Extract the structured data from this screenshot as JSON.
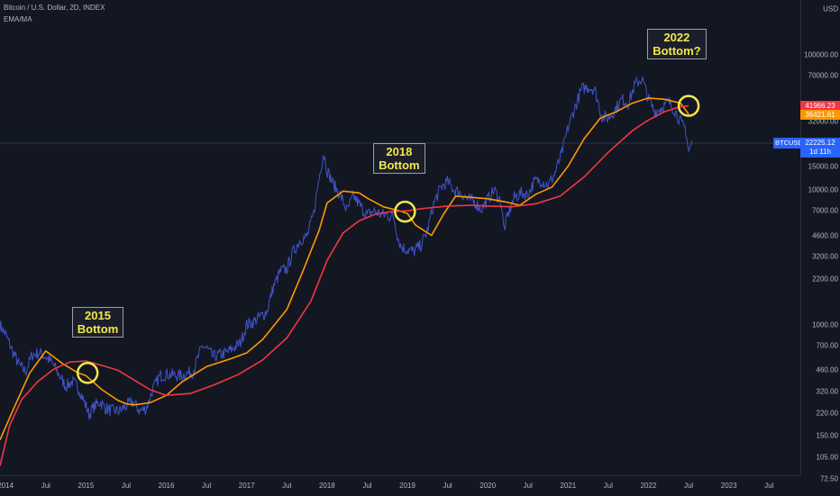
{
  "header": {
    "title": "Bitcoin / U.S. Dollar, 2D, INDEX",
    "indicator": "EMA/MA"
  },
  "axis": {
    "currency_label": "USD",
    "price_ticks": [
      100000,
      70000,
      32000,
      15000,
      10000,
      7000,
      4600,
      3200,
      2200,
      1000,
      700,
      460,
      320,
      220,
      150,
      105,
      72.5
    ],
    "price_tick_labels": [
      "100000.00",
      "70000.00",
      "32000.00",
      "15000.00",
      "10000.00",
      "7000.00",
      "4600.00",
      "3200.00",
      "2200.00",
      "1000.00",
      "700.00",
      "460.00",
      "320.00",
      "220.00",
      "150.00",
      "105.00",
      "72.50"
    ],
    "time_ticks": [
      {
        "label": "2014",
        "t": 2014.0
      },
      {
        "label": "Jul",
        "t": 2014.5
      },
      {
        "label": "2015",
        "t": 2015.0
      },
      {
        "label": "Jul",
        "t": 2015.5
      },
      {
        "label": "2016",
        "t": 2016.0
      },
      {
        "label": "Jul",
        "t": 2016.5
      },
      {
        "label": "2017",
        "t": 2017.0
      },
      {
        "label": "Jul",
        "t": 2017.5
      },
      {
        "label": "2018",
        "t": 2018.0
      },
      {
        "label": "Jul",
        "t": 2018.5
      },
      {
        "label": "2019",
        "t": 2019.0
      },
      {
        "label": "Jul",
        "t": 2019.5
      },
      {
        "label": "2020",
        "t": 2020.0
      },
      {
        "label": "Jul",
        "t": 2020.5
      },
      {
        "label": "2021",
        "t": 2021.0
      },
      {
        "label": "Jul",
        "t": 2021.5
      },
      {
        "label": "2022",
        "t": 2022.0
      },
      {
        "label": "Jul",
        "t": 2022.5
      },
      {
        "label": "2023",
        "t": 2023.0
      },
      {
        "label": "Jul",
        "t": 2023.5
      }
    ]
  },
  "price_tags": {
    "ma": {
      "label": "41966.23",
      "color": "#f23645",
      "value": 41966.23
    },
    "ema": {
      "label": "36421.61",
      "color": "#ff9800",
      "value": 36421.61
    },
    "current": {
      "symbol": "BTCUSD",
      "price": "22225.12",
      "countdown": "1d 11h",
      "color": "#2962ff",
      "value": 22225.12
    }
  },
  "annotations": [
    {
      "text": "2015\nBottom",
      "t": 2015.15,
      "price": 1050
    },
    {
      "text": "2018\nBottom",
      "t": 2018.9,
      "price": 17000
    },
    {
      "text": "2022\nBottom?",
      "t": 2022.35,
      "price": 120000
    }
  ],
  "circles": [
    {
      "t": 2015.02,
      "price": 440
    },
    {
      "t": 2018.97,
      "price": 6900
    },
    {
      "t": 2022.5,
      "price": 42000
    }
  ],
  "chart_data": {
    "type": "line",
    "title": "Bitcoin / U.S. Dollar, 2D, INDEX",
    "xlabel": "",
    "ylabel": "USD",
    "scale": "log",
    "xlim": [
      2013.93,
      2023.89
    ],
    "ylim": [
      60,
      200000
    ],
    "grid": false,
    "series": [
      {
        "name": "BTCUSD",
        "color": "#4256d4",
        "x": [
          2013.93,
          2014.0,
          2014.08,
          2014.17,
          2014.25,
          2014.33,
          2014.42,
          2014.5,
          2014.58,
          2014.67,
          2014.75,
          2014.83,
          2014.92,
          2015.0,
          2015.04,
          2015.08,
          2015.17,
          2015.25,
          2015.33,
          2015.42,
          2015.5,
          2015.58,
          2015.67,
          2015.75,
          2015.83,
          2015.92,
          2016.0,
          2016.17,
          2016.33,
          2016.45,
          2016.5,
          2016.58,
          2016.75,
          2016.92,
          2017.0,
          2017.08,
          2017.17,
          2017.25,
          2017.33,
          2017.42,
          2017.5,
          2017.58,
          2017.67,
          2017.75,
          2017.83,
          2017.92,
          2017.96,
          2018.0,
          2018.08,
          2018.17,
          2018.25,
          2018.33,
          2018.42,
          2018.5,
          2018.58,
          2018.67,
          2018.75,
          2018.83,
          2018.88,
          2018.92,
          2019.0,
          2019.08,
          2019.17,
          2019.25,
          2019.33,
          2019.42,
          2019.5,
          2019.58,
          2019.67,
          2019.75,
          2019.83,
          2019.92,
          2020.0,
          2020.08,
          2020.17,
          2020.2,
          2020.25,
          2020.33,
          2020.42,
          2020.5,
          2020.58,
          2020.67,
          2020.75,
          2020.83,
          2020.92,
          2021.0,
          2021.08,
          2021.17,
          2021.25,
          2021.33,
          2021.42,
          2021.5,
          2021.58,
          2021.67,
          2021.75,
          2021.83,
          2021.92,
          2022.0,
          2022.08,
          2022.17,
          2022.25,
          2022.33,
          2022.42,
          2022.46,
          2022.5,
          2022.54
        ],
        "y": [
          1000,
          850,
          650,
          500,
          450,
          600,
          620,
          580,
          520,
          420,
          350,
          380,
          330,
          250,
          215,
          240,
          270,
          240,
          230,
          230,
          250,
          270,
          230,
          240,
          330,
          420,
          430,
          420,
          450,
          700,
          670,
          580,
          620,
          730,
          1000,
          1050,
          1150,
          1250,
          1900,
          2500,
          2600,
          3500,
          4300,
          4500,
          6500,
          14500,
          19000,
          14000,
          11000,
          9000,
          7000,
          9000,
          7500,
          6500,
          7000,
          6600,
          6500,
          6300,
          4500,
          3800,
          3600,
          3500,
          3900,
          5000,
          8000,
          10500,
          11500,
          10000,
          9500,
          8500,
          8200,
          7200,
          8500,
          10000,
          8000,
          5000,
          6500,
          8800,
          9500,
          9200,
          11500,
          11800,
          10800,
          13000,
          18500,
          29000,
          40000,
          56000,
          58000,
          56000,
          35000,
          34000,
          39000,
          47000,
          44000,
          60000,
          67000,
          47000,
          38000,
          41000,
          45000,
          39000,
          30000,
          29000,
          19000,
          22225
        ]
      },
      {
        "name": "EMA",
        "color": "#ff9800",
        "x": [
          2013.93,
          2014.1,
          2014.3,
          2014.5,
          2014.7,
          2014.9,
          2015.0,
          2015.2,
          2015.4,
          2015.5,
          2015.6,
          2015.8,
          2016.0,
          2016.2,
          2016.5,
          2016.8,
          2017.0,
          2017.2,
          2017.5,
          2017.7,
          2017.9,
          2018.0,
          2018.2,
          2018.4,
          2018.5,
          2018.7,
          2018.9,
          2019.0,
          2019.1,
          2019.3,
          2019.45,
          2019.6,
          2019.8,
          2020.0,
          2020.2,
          2020.4,
          2020.6,
          2020.8,
          2021.0,
          2021.2,
          2021.4,
          2021.6,
          2021.8,
          2022.0,
          2022.2,
          2022.4,
          2022.5
        ],
        "y": [
          140,
          240,
          440,
          640,
          520,
          440,
          420,
          330,
          275,
          260,
          255,
          265,
          300,
          380,
          490,
          560,
          620,
          780,
          1300,
          2500,
          5000,
          8000,
          9800,
          9500,
          8700,
          7500,
          7000,
          6700,
          5500,
          4600,
          6600,
          9000,
          8800,
          8600,
          8200,
          7700,
          9300,
          10500,
          15000,
          24000,
          34000,
          38000,
          44000,
          48000,
          47000,
          44000,
          36400
        ]
      },
      {
        "name": "MA",
        "color": "#f23645",
        "x": [
          2013.93,
          2014.05,
          2014.2,
          2014.4,
          2014.6,
          2014.8,
          2015.0,
          2015.2,
          2015.4,
          2015.6,
          2015.8,
          2016.0,
          2016.3,
          2016.6,
          2016.9,
          2017.2,
          2017.5,
          2017.8,
          2018.0,
          2018.2,
          2018.4,
          2018.6,
          2018.8,
          2019.0,
          2019.2,
          2019.5,
          2019.8,
          2020.0,
          2020.3,
          2020.6,
          2020.9,
          2021.2,
          2021.5,
          2021.8,
          2022.0,
          2022.2,
          2022.4,
          2022.5
        ],
        "y": [
          90,
          180,
          280,
          380,
          470,
          530,
          540,
          500,
          460,
          390,
          330,
          300,
          310,
          360,
          430,
          550,
          800,
          1500,
          3000,
          4800,
          5900,
          6600,
          6900,
          7000,
          7300,
          7600,
          7700,
          7600,
          7500,
          7900,
          9000,
          12500,
          19000,
          27500,
          33000,
          38000,
          41500,
          42000
        ]
      }
    ]
  }
}
